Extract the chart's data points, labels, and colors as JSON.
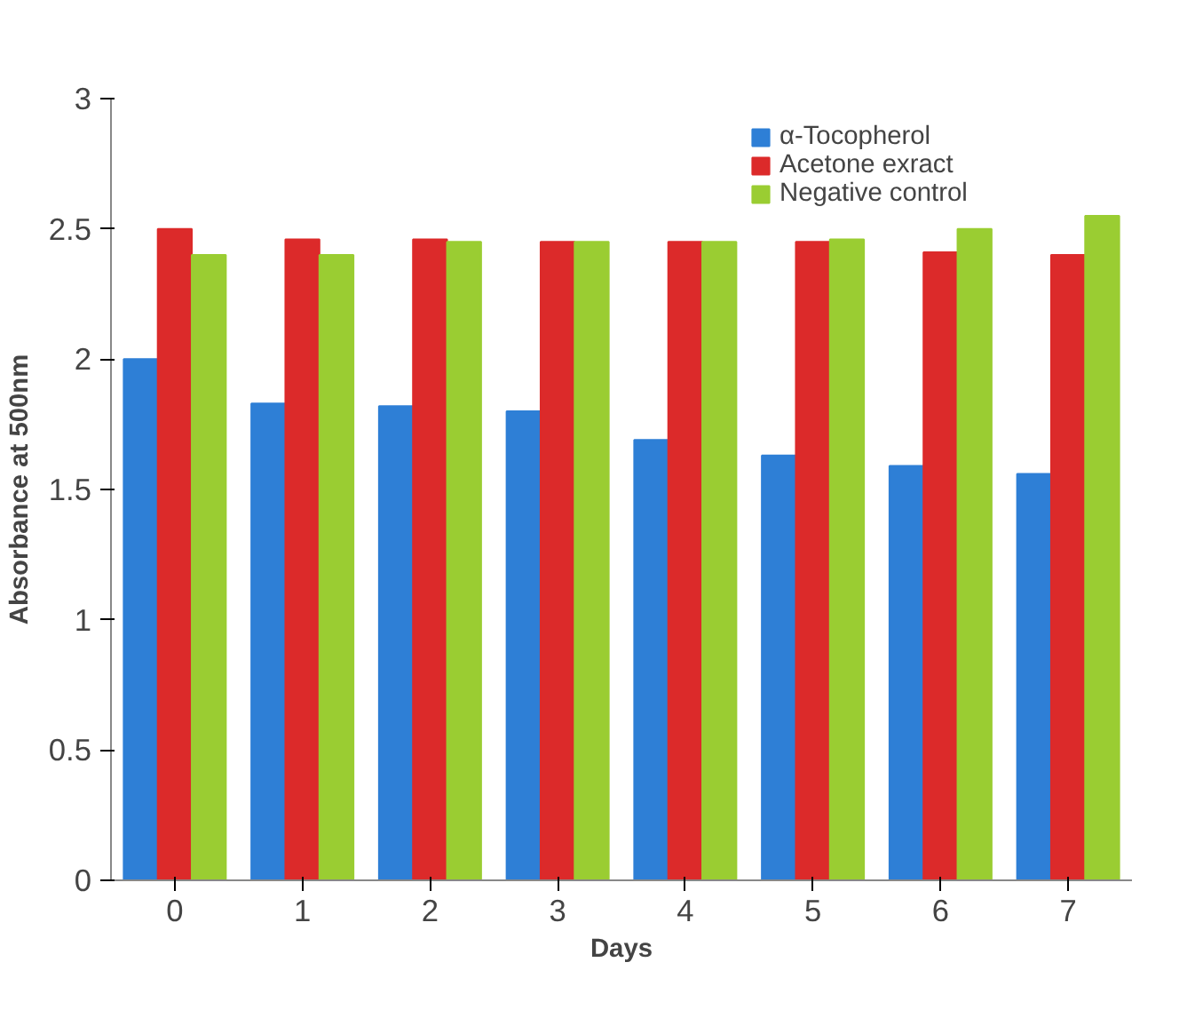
{
  "chart_data": {
    "type": "bar",
    "xlabel": "Days",
    "ylabel": "Absorbance at 500nm",
    "categories": [
      "0",
      "1",
      "2",
      "3",
      "4",
      "5",
      "6",
      "7"
    ],
    "series": [
      {
        "name": "α-Tocopherol",
        "color": "#2e7fd6",
        "values": [
          2.0,
          1.83,
          1.82,
          1.8,
          1.69,
          1.63,
          1.59,
          1.56
        ]
      },
      {
        "name": "Acetone exract",
        "color": "#dc2a2a",
        "values": [
          2.5,
          2.46,
          2.46,
          2.45,
          2.45,
          2.45,
          2.41,
          2.4
        ]
      },
      {
        "name": "Negative control",
        "color": "#9acd32",
        "values": [
          2.4,
          2.4,
          2.45,
          2.45,
          2.45,
          2.46,
          2.5,
          2.55
        ]
      }
    ],
    "ylim": [
      0,
      3
    ],
    "yticks": [
      0,
      0.5,
      1,
      1.5,
      2,
      2.5,
      3
    ],
    "legend": "top right"
  }
}
